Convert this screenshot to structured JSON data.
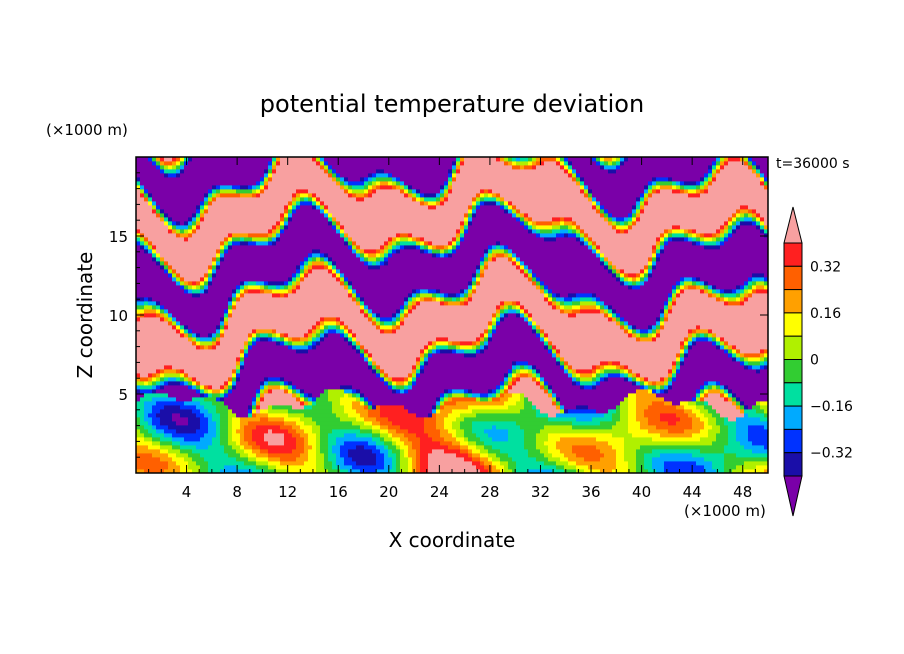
{
  "chart_data": {
    "type": "heatmap",
    "title": "potential temperature deviation",
    "time_label": "t=36000 s",
    "xlabel": "X coordinate",
    "ylabel": "Z coordinate",
    "x_unit": "(×1000 m)",
    "y_unit": "(×1000 m)",
    "xlim": [
      0,
      50
    ],
    "ylim": [
      0,
      20
    ],
    "x_ticks": [
      4,
      8,
      12,
      16,
      20,
      24,
      28,
      32,
      36,
      40,
      44,
      48
    ],
    "y_ticks": [
      5,
      10,
      15
    ],
    "colorbar": {
      "labels": [
        "0.32",
        "0.16",
        "0",
        "-0.16",
        "-0.32"
      ],
      "label_values": [
        0.32,
        0.16,
        0,
        -0.16,
        -0.32
      ],
      "levels": [
        -0.4,
        -0.32,
        -0.24,
        -0.16,
        -0.08,
        0,
        0.08,
        0.16,
        0.24,
        0.32,
        0.4
      ],
      "colors": [
        "#7a00a8",
        "#1a0ea8",
        "#0032ff",
        "#00aaff",
        "#00e0a0",
        "#32cd32",
        "#b0f000",
        "#ffff00",
        "#ffa000",
        "#ff6000",
        "#ff2020",
        "#f8a0a0"
      ],
      "extend": "both"
    },
    "field_description_zones": [
      {
        "z_range": [
          0,
          4.5
        ],
        "pattern": "turbulent mixed layer, values mostly -0.24 to 0.4"
      },
      {
        "z_range": [
          4.5,
          20
        ],
        "pattern": "alternating layers of -0.4 (purple) and 0.4 (pink) with sharp fronts"
      }
    ]
  }
}
